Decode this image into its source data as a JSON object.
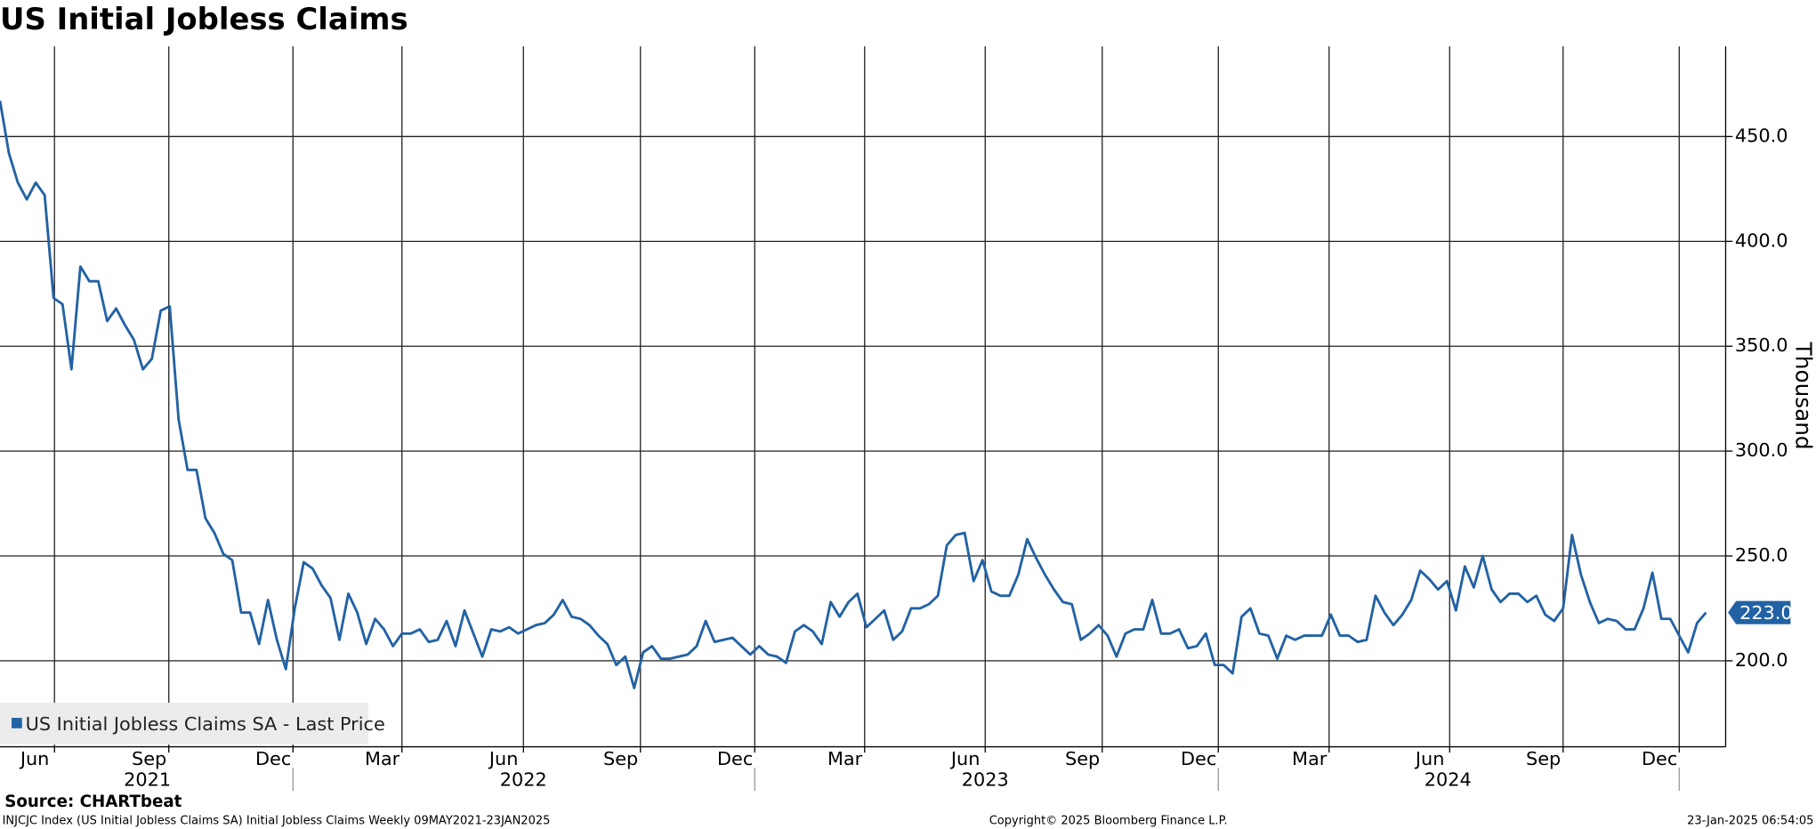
{
  "chart_data": {
    "type": "line",
    "title": "US Initial Jobless Claims",
    "y_label": "Thousand",
    "series": [
      {
        "name": "US Initial Jobless Claims SA - Last Price",
        "color": "#2262a4",
        "values": [
          467,
          442,
          428,
          420,
          428,
          422,
          373,
          370,
          339,
          388,
          381,
          381,
          362,
          368,
          360,
          353,
          339,
          344,
          367,
          369,
          315,
          291,
          291,
          268,
          261,
          251,
          248,
          223,
          223,
          208,
          229,
          210,
          196,
          225,
          247,
          244,
          236,
          230,
          210,
          232,
          223,
          208,
          220,
          215,
          207,
          213,
          213,
          215,
          209,
          210,
          219,
          207,
          224,
          213,
          202,
          215,
          214,
          216,
          213,
          215,
          217,
          218,
          222,
          229,
          221,
          220,
          217,
          212,
          208,
          198,
          202,
          187,
          204,
          207,
          201,
          201,
          202,
          203,
          207,
          219,
          209,
          210,
          211,
          207,
          203,
          207,
          203,
          202,
          199,
          214,
          217,
          214,
          208,
          228,
          221,
          228,
          232,
          216,
          220,
          224,
          210,
          214,
          225,
          225,
          227,
          231,
          255,
          260,
          261,
          238,
          248,
          233,
          231,
          231,
          241,
          258,
          249,
          241,
          234,
          228,
          227,
          210,
          213,
          217,
          212,
          202,
          213,
          215,
          215,
          229,
          213,
          213,
          215,
          206,
          207,
          213,
          198,
          198,
          194,
          221,
          225,
          213,
          212,
          201,
          212,
          210,
          212,
          212,
          212,
          222,
          212,
          212,
          209,
          210,
          231,
          223,
          217,
          222,
          229,
          243,
          239,
          234,
          238,
          224,
          245,
          235,
          250,
          234,
          228,
          232,
          232,
          228,
          231,
          222,
          219,
          225,
          260,
          241,
          228,
          218,
          220,
          219,
          215,
          215,
          225,
          242,
          220,
          220,
          212,
          204,
          218,
          223
        ]
      }
    ],
    "last_price_label": {
      "value": 223,
      "label": "223.0"
    },
    "xlim": [
      0,
      193.2
    ],
    "xticks": [
      {
        "value": 6.1,
        "label": "Jun"
      },
      {
        "value": 18.9,
        "label": "Sep"
      },
      {
        "value": 32.8,
        "label": "Dec"
      },
      {
        "value": 45.0,
        "label": "Mar"
      },
      {
        "value": 58.6,
        "label": "Jun"
      },
      {
        "value": 71.7,
        "label": "Sep"
      },
      {
        "value": 84.5,
        "label": "Dec"
      },
      {
        "value": 96.8,
        "label": "Mar"
      },
      {
        "value": 110.3,
        "label": "Jun"
      },
      {
        "value": 123.4,
        "label": "Sep"
      },
      {
        "value": 136.4,
        "label": "Dec"
      },
      {
        "value": 148.8,
        "label": "Mar"
      },
      {
        "value": 162.3,
        "label": "Jun"
      },
      {
        "value": 175.0,
        "label": "Sep"
      },
      {
        "value": 188.0,
        "label": "Dec"
      }
    ],
    "year_ticks": [
      {
        "value": 16.5,
        "label": "2021"
      },
      {
        "value": 58.6,
        "label": "2022"
      },
      {
        "value": 110.3,
        "label": "2023"
      },
      {
        "value": 162.1,
        "label": "2024"
      }
    ],
    "ylim": [
      159,
      493
    ],
    "yticks": [
      {
        "value": 200,
        "label": "200.0"
      },
      {
        "value": 250,
        "label": "250.0"
      },
      {
        "value": 300,
        "label": "300.0"
      },
      {
        "value": 350,
        "label": "350.0"
      },
      {
        "value": 400,
        "label": "400.0"
      },
      {
        "value": 450,
        "label": "450.0"
      }
    ],
    "grid": true,
    "legend": "lower left",
    "source": "Source: CHARTbeat",
    "footer_left": "INJCJC Index (US Initial Jobless Claims SA) Initial Jobless Claims  Weekly 09MAY2021-23JAN2025",
    "footer_center": "Copyright© 2025 Bloomberg Finance L.P.",
    "footer_right": "23-Jan-2025 06:54:05"
  }
}
